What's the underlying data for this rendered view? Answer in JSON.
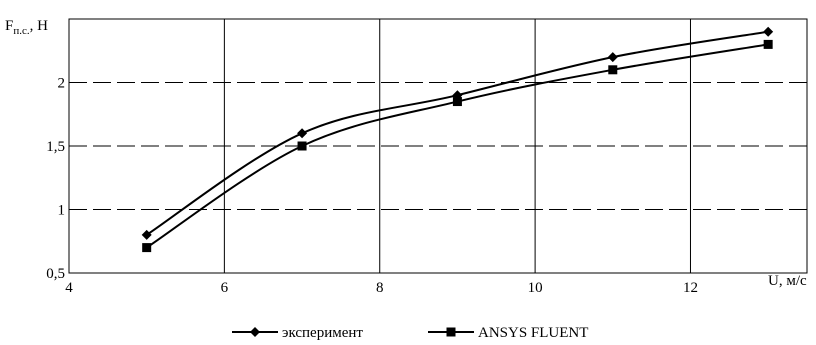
{
  "chart_data": {
    "type": "line",
    "title": "",
    "xlabel": "U, м/с",
    "ylabel": {
      "main": "F",
      "subscript": "п.с.",
      "unit": ", Н"
    },
    "xlim": [
      4,
      13.5
    ],
    "ylim": [
      0.5,
      2.5
    ],
    "xticks": [
      {
        "value": 4,
        "label": "4"
      },
      {
        "value": 6,
        "label": "6"
      },
      {
        "value": 8,
        "label": "8"
      },
      {
        "value": 10,
        "label": "10"
      },
      {
        "value": 12,
        "label": "12"
      }
    ],
    "yticks": [
      {
        "value": 0.5,
        "label": "0,5"
      },
      {
        "value": 1,
        "label": "1"
      },
      {
        "value": 1.5,
        "label": "1,5"
      },
      {
        "value": 2,
        "label": "2"
      }
    ],
    "grid": {
      "vertical": true,
      "horizontal": true,
      "horizontal_style": "dashed"
    },
    "legend_position": "bottom",
    "series": [
      {
        "name": "эксперимент",
        "marker": "diamond",
        "color": "#000000",
        "x": [
          5,
          7,
          9,
          11,
          13
        ],
        "y": [
          0.8,
          1.6,
          1.9,
          2.2,
          2.4
        ]
      },
      {
        "name": "ANSYS FLUENT",
        "marker": "square",
        "color": "#000000",
        "x": [
          5,
          7,
          9,
          11,
          13
        ],
        "y": [
          0.7,
          1.5,
          1.85,
          2.1,
          2.3
        ]
      }
    ]
  }
}
